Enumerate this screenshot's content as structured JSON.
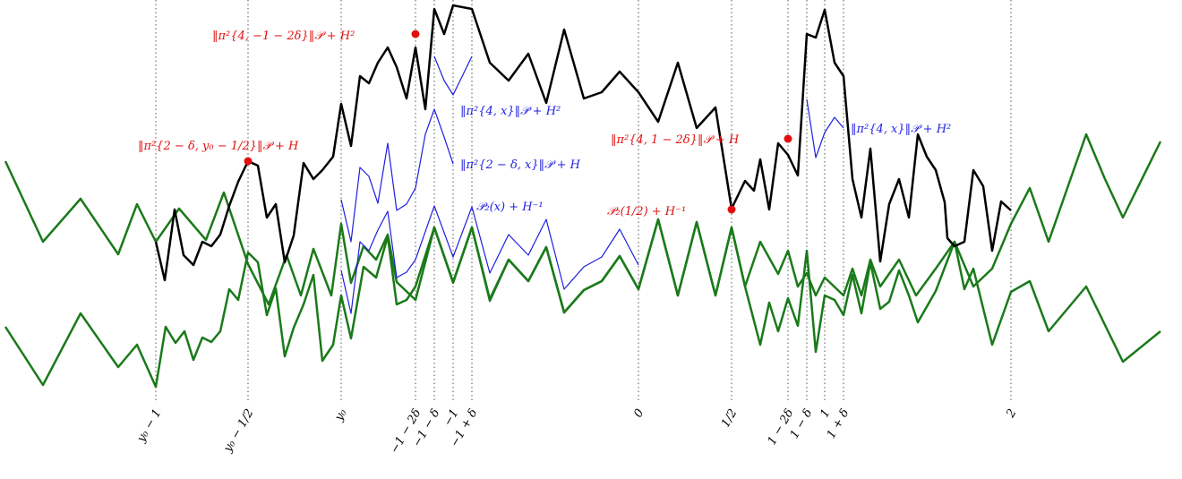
{
  "colors": {
    "black": "#000000",
    "green": "#1a7a1a",
    "blue": "#1f1fe0",
    "red": "#e01010"
  },
  "ticks": [
    {
      "id": "t1",
      "label": "y₀ − 1"
    },
    {
      "id": "t2",
      "label": "y₀ − 1/2"
    },
    {
      "id": "t3",
      "label": "y₀"
    },
    {
      "id": "t4",
      "label": "−1 − 2δ"
    },
    {
      "id": "t5",
      "label": "−1 − δ"
    },
    {
      "id": "t6",
      "label": "−1"
    },
    {
      "id": "t7",
      "label": "−1 + δ"
    },
    {
      "id": "t8",
      "label": "0"
    },
    {
      "id": "t9",
      "label": "1/2"
    },
    {
      "id": "t10",
      "label": "1 − 2δ"
    },
    {
      "id": "t11",
      "label": "1 − δ"
    },
    {
      "id": "t12",
      "label": "1"
    },
    {
      "id": "t13",
      "label": "1 + δ"
    },
    {
      "id": "t14",
      "label": "2"
    }
  ],
  "annotations": {
    "a1": "‖π²{4, −1 − 2δ}‖𝒫 + H²",
    "a2": "‖π²{4, x}‖𝒫 + H²",
    "a3": "‖π²{2 − δ, y₀ − 1/2}‖𝒫 + H",
    "a4": "‖π²{2 − δ, x}‖𝒫 + H",
    "a5": "𝒫₂(x) + H⁻¹",
    "a6": "‖π²{4, 1 − 2δ}‖𝒫 + H",
    "a7": "‖π²{4, x}‖𝒫 + H²",
    "a8": "𝒫₂(1/2) + H⁻¹"
  }
}
